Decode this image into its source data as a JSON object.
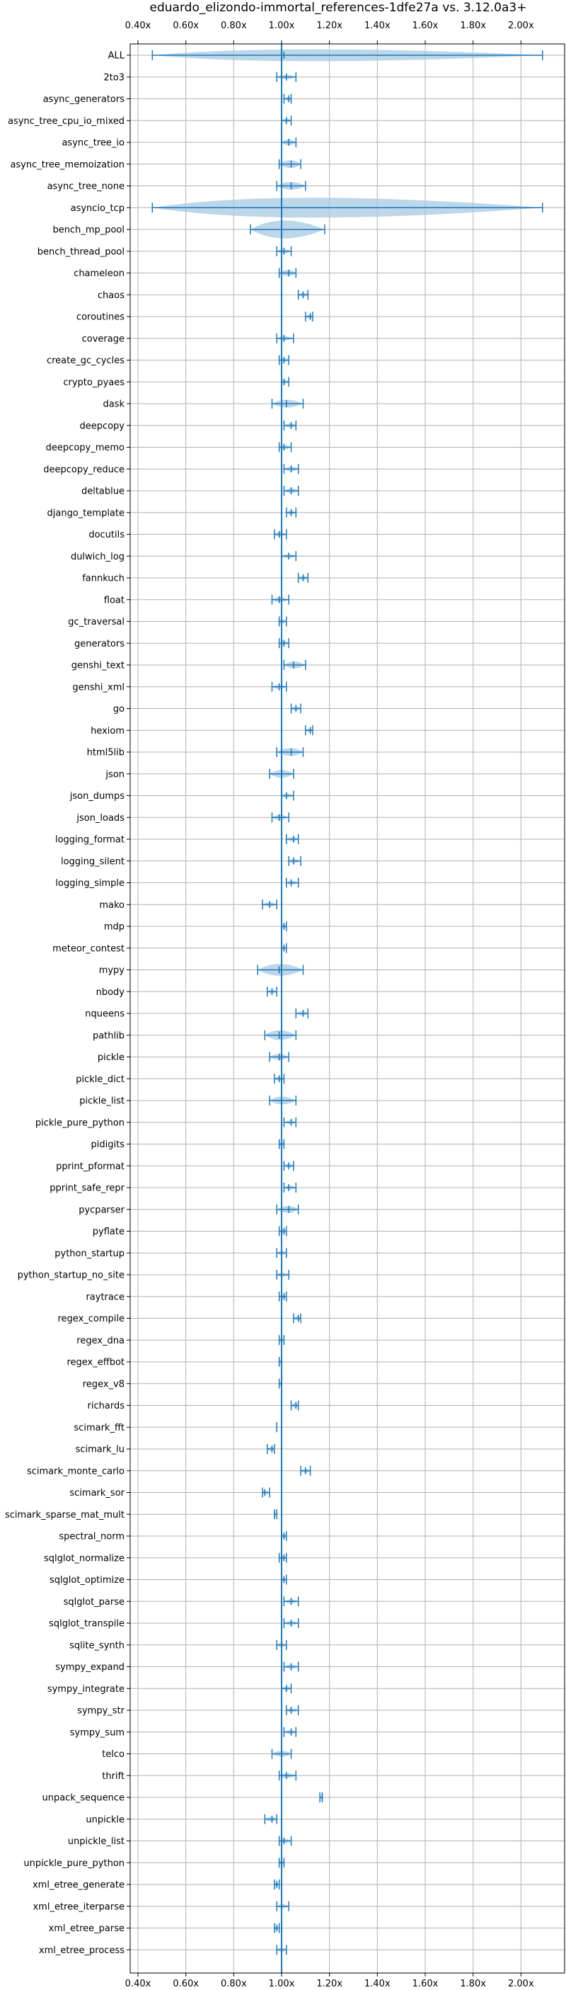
{
  "chart_data": {
    "type": "violin",
    "title": "eduardo_elizondo-immortal_references-1dfe27a vs. 3.12.0a3+",
    "xlabel": "",
    "ylabel": "",
    "xlim": [
      0.4,
      2.1
    ],
    "x_ticks": [
      "0.40x",
      "0.60x",
      "0.80x",
      "1.00x",
      "1.20x",
      "1.40x",
      "1.60x",
      "1.80x",
      "2.00x"
    ],
    "tick_positions_top_and_bottom": true,
    "reference_line": 1.0,
    "grid": true,
    "color": "#1f77b4",
    "violin_fill": "#a6c8e3",
    "benchmarks": [
      {
        "name": "ALL",
        "median": 1.01,
        "min": 0.46,
        "max": 2.09,
        "width": 0.06
      },
      {
        "name": "2to3",
        "median": 1.02,
        "min": 0.98,
        "max": 1.06,
        "width": 0.02
      },
      {
        "name": "async_generators",
        "median": 1.03,
        "min": 1.01,
        "max": 1.04,
        "width": 0.015
      },
      {
        "name": "async_tree_cpu_io_mixed",
        "median": 1.02,
        "min": 1.0,
        "max": 1.04,
        "width": 0.02
      },
      {
        "name": "async_tree_io",
        "median": 1.03,
        "min": 1.0,
        "max": 1.06,
        "width": 0.03
      },
      {
        "name": "async_tree_memoization",
        "median": 1.04,
        "min": 0.99,
        "max": 1.08,
        "width": 0.04
      },
      {
        "name": "async_tree_none",
        "median": 1.04,
        "min": 0.98,
        "max": 1.1,
        "width": 0.04
      },
      {
        "name": "asyncio_tcp",
        "median": 1.0,
        "min": 0.46,
        "max": 2.09,
        "width": 0.5
      },
      {
        "name": "bench_mp_pool",
        "median": 1.0,
        "min": 0.87,
        "max": 1.18,
        "width": 0.09
      },
      {
        "name": "bench_thread_pool",
        "median": 1.01,
        "min": 0.98,
        "max": 1.04,
        "width": 0.02
      },
      {
        "name": "chameleon",
        "median": 1.03,
        "min": 0.99,
        "max": 1.06,
        "width": 0.03
      },
      {
        "name": "chaos",
        "median": 1.09,
        "min": 1.07,
        "max": 1.11,
        "width": 0.015
      },
      {
        "name": "coroutines",
        "median": 1.12,
        "min": 1.1,
        "max": 1.13,
        "width": 0.01
      },
      {
        "name": "coverage",
        "median": 1.01,
        "min": 0.98,
        "max": 1.05,
        "width": 0.02
      },
      {
        "name": "create_gc_cycles",
        "median": 1.01,
        "min": 0.99,
        "max": 1.03,
        "width": 0.015
      },
      {
        "name": "crypto_pyaes",
        "median": 1.01,
        "min": 1.0,
        "max": 1.03,
        "width": 0.01
      },
      {
        "name": "dask",
        "median": 1.02,
        "min": 0.96,
        "max": 1.09,
        "width": 0.04
      },
      {
        "name": "deepcopy",
        "median": 1.04,
        "min": 1.01,
        "max": 1.06,
        "width": 0.02
      },
      {
        "name": "deepcopy_memo",
        "median": 1.01,
        "min": 0.99,
        "max": 1.04,
        "width": 0.02
      },
      {
        "name": "deepcopy_reduce",
        "median": 1.04,
        "min": 1.01,
        "max": 1.07,
        "width": 0.025
      },
      {
        "name": "deltablue",
        "median": 1.04,
        "min": 1.01,
        "max": 1.07,
        "width": 0.025
      },
      {
        "name": "django_template",
        "median": 1.04,
        "min": 1.02,
        "max": 1.06,
        "width": 0.02
      },
      {
        "name": "docutils",
        "median": 0.99,
        "min": 0.97,
        "max": 1.02,
        "width": 0.02
      },
      {
        "name": "dulwich_log",
        "median": 1.03,
        "min": 1.0,
        "max": 1.06,
        "width": 0.02
      },
      {
        "name": "fannkuch",
        "median": 1.09,
        "min": 1.07,
        "max": 1.11,
        "width": 0.01
      },
      {
        "name": "float",
        "median": 0.99,
        "min": 0.96,
        "max": 1.03,
        "width": 0.025
      },
      {
        "name": "gc_traversal",
        "median": 1.0,
        "min": 0.99,
        "max": 1.02,
        "width": 0.01
      },
      {
        "name": "generators",
        "median": 1.01,
        "min": 0.99,
        "max": 1.03,
        "width": 0.01
      },
      {
        "name": "genshi_text",
        "median": 1.05,
        "min": 1.01,
        "max": 1.1,
        "width": 0.035
      },
      {
        "name": "genshi_xml",
        "median": 0.99,
        "min": 0.96,
        "max": 1.02,
        "width": 0.02
      },
      {
        "name": "go",
        "median": 1.06,
        "min": 1.04,
        "max": 1.08,
        "width": 0.015
      },
      {
        "name": "hexiom",
        "median": 1.12,
        "min": 1.1,
        "max": 1.13,
        "width": 0.01
      },
      {
        "name": "html5lib",
        "median": 1.04,
        "min": 0.98,
        "max": 1.09,
        "width": 0.04
      },
      {
        "name": "json",
        "median": 1.0,
        "min": 0.95,
        "max": 1.05,
        "width": 0.04
      },
      {
        "name": "json_dumps",
        "median": 1.02,
        "min": 1.0,
        "max": 1.05,
        "width": 0.02
      },
      {
        "name": "json_loads",
        "median": 0.99,
        "min": 0.96,
        "max": 1.03,
        "width": 0.025
      },
      {
        "name": "logging_format",
        "median": 1.05,
        "min": 1.02,
        "max": 1.07,
        "width": 0.02
      },
      {
        "name": "logging_silent",
        "median": 1.05,
        "min": 1.03,
        "max": 1.08,
        "width": 0.015
      },
      {
        "name": "logging_simple",
        "median": 1.04,
        "min": 1.02,
        "max": 1.07,
        "width": 0.02
      },
      {
        "name": "mako",
        "median": 0.95,
        "min": 0.92,
        "max": 0.98,
        "width": 0.02
      },
      {
        "name": "mdp",
        "median": 1.01,
        "min": 1.0,
        "max": 1.02,
        "width": 0.008
      },
      {
        "name": "meteor_contest",
        "median": 1.01,
        "min": 1.0,
        "max": 1.02,
        "width": 0.008
      },
      {
        "name": "mypy",
        "median": 0.99,
        "min": 0.9,
        "max": 1.09,
        "width": 0.06
      },
      {
        "name": "nbody",
        "median": 0.96,
        "min": 0.94,
        "max": 0.98,
        "width": 0.015
      },
      {
        "name": "nqueens",
        "median": 1.09,
        "min": 1.06,
        "max": 1.11,
        "width": 0.02
      },
      {
        "name": "pathlib",
        "median": 0.99,
        "min": 0.93,
        "max": 1.06,
        "width": 0.05
      },
      {
        "name": "pickle",
        "median": 0.99,
        "min": 0.95,
        "max": 1.03,
        "width": 0.03
      },
      {
        "name": "pickle_dict",
        "median": 0.99,
        "min": 0.97,
        "max": 1.01,
        "width": 0.015
      },
      {
        "name": "pickle_list",
        "median": 1.0,
        "min": 0.95,
        "max": 1.06,
        "width": 0.04
      },
      {
        "name": "pickle_pure_python",
        "median": 1.04,
        "min": 1.01,
        "max": 1.06,
        "width": 0.02
      },
      {
        "name": "pidigits",
        "median": 1.0,
        "min": 0.99,
        "max": 1.01,
        "width": 0.008
      },
      {
        "name": "pprint_pformat",
        "median": 1.03,
        "min": 1.01,
        "max": 1.05,
        "width": 0.015
      },
      {
        "name": "pprint_safe_repr",
        "median": 1.03,
        "min": 1.01,
        "max": 1.06,
        "width": 0.02
      },
      {
        "name": "pycparser",
        "median": 1.03,
        "min": 0.98,
        "max": 1.07,
        "width": 0.035
      },
      {
        "name": "pyflate",
        "median": 1.01,
        "min": 0.99,
        "max": 1.02,
        "width": 0.01
      },
      {
        "name": "python_startup",
        "median": 1.0,
        "min": 0.98,
        "max": 1.02,
        "width": 0.015
      },
      {
        "name": "python_startup_no_site",
        "median": 1.0,
        "min": 0.98,
        "max": 1.03,
        "width": 0.015
      },
      {
        "name": "raytrace",
        "median": 1.01,
        "min": 0.99,
        "max": 1.02,
        "width": 0.01
      },
      {
        "name": "regex_compile",
        "median": 1.07,
        "min": 1.05,
        "max": 1.08,
        "width": 0.01
      },
      {
        "name": "regex_dna",
        "median": 1.0,
        "min": 0.99,
        "max": 1.01,
        "width": 0.008
      },
      {
        "name": "regex_effbot",
        "median": 1.0,
        "min": 0.99,
        "max": 1.0,
        "width": 0.005
      },
      {
        "name": "regex_v8",
        "median": 1.0,
        "min": 0.99,
        "max": 1.0,
        "width": 0.005
      },
      {
        "name": "richards",
        "median": 1.06,
        "min": 1.04,
        "max": 1.07,
        "width": 0.015
      },
      {
        "name": "scimark_fft",
        "median": 0.98,
        "min": 0.98,
        "max": 0.98,
        "width": 0.005
      },
      {
        "name": "scimark_lu",
        "median": 0.96,
        "min": 0.94,
        "max": 0.97,
        "width": 0.01
      },
      {
        "name": "scimark_monte_carlo",
        "median": 1.1,
        "min": 1.08,
        "max": 1.12,
        "width": 0.015
      },
      {
        "name": "scimark_sor",
        "median": 0.93,
        "min": 0.92,
        "max": 0.95,
        "width": 0.01
      },
      {
        "name": "scimark_sparse_mat_mult",
        "median": 0.97,
        "min": 0.97,
        "max": 0.98,
        "width": 0.005
      },
      {
        "name": "spectral_norm",
        "median": 1.01,
        "min": 1.0,
        "max": 1.02,
        "width": 0.008
      },
      {
        "name": "sqlglot_normalize",
        "median": 1.01,
        "min": 0.99,
        "max": 1.02,
        "width": 0.01
      },
      {
        "name": "sqlglot_optimize",
        "median": 1.01,
        "min": 1.0,
        "max": 1.02,
        "width": 0.008
      },
      {
        "name": "sqlglot_parse",
        "median": 1.04,
        "min": 1.01,
        "max": 1.07,
        "width": 0.02
      },
      {
        "name": "sqlglot_transpile",
        "median": 1.04,
        "min": 1.01,
        "max": 1.07,
        "width": 0.02
      },
      {
        "name": "sqlite_synth",
        "median": 1.0,
        "min": 0.98,
        "max": 1.02,
        "width": 0.015
      },
      {
        "name": "sympy_expand",
        "median": 1.04,
        "min": 1.01,
        "max": 1.07,
        "width": 0.02
      },
      {
        "name": "sympy_integrate",
        "median": 1.02,
        "min": 1.0,
        "max": 1.04,
        "width": 0.015
      },
      {
        "name": "sympy_str",
        "median": 1.04,
        "min": 1.02,
        "max": 1.07,
        "width": 0.02
      },
      {
        "name": "sympy_sum",
        "median": 1.04,
        "min": 1.01,
        "max": 1.06,
        "width": 0.02
      },
      {
        "name": "telco",
        "median": 1.0,
        "min": 0.96,
        "max": 1.04,
        "width": 0.03
      },
      {
        "name": "thrift",
        "median": 1.02,
        "min": 0.99,
        "max": 1.06,
        "width": 0.025
      },
      {
        "name": "unpack_sequence",
        "median": 1.17,
        "min": 1.16,
        "max": 1.17,
        "width": 0.005
      },
      {
        "name": "unpickle",
        "median": 0.96,
        "min": 0.93,
        "max": 0.98,
        "width": 0.02
      },
      {
        "name": "unpickle_list",
        "median": 1.01,
        "min": 0.99,
        "max": 1.04,
        "width": 0.015
      },
      {
        "name": "unpickle_pure_python",
        "median": 1.0,
        "min": 0.99,
        "max": 1.01,
        "width": 0.01
      },
      {
        "name": "xml_etree_generate",
        "median": 0.98,
        "min": 0.97,
        "max": 0.99,
        "width": 0.008
      },
      {
        "name": "xml_etree_iterparse",
        "median": 1.0,
        "min": 0.98,
        "max": 1.03,
        "width": 0.015
      },
      {
        "name": "xml_etree_parse",
        "median": 0.98,
        "min": 0.97,
        "max": 0.99,
        "width": 0.008
      },
      {
        "name": "xml_etree_process",
        "median": 1.0,
        "min": 0.98,
        "max": 1.02,
        "width": 0.012
      }
    ]
  }
}
